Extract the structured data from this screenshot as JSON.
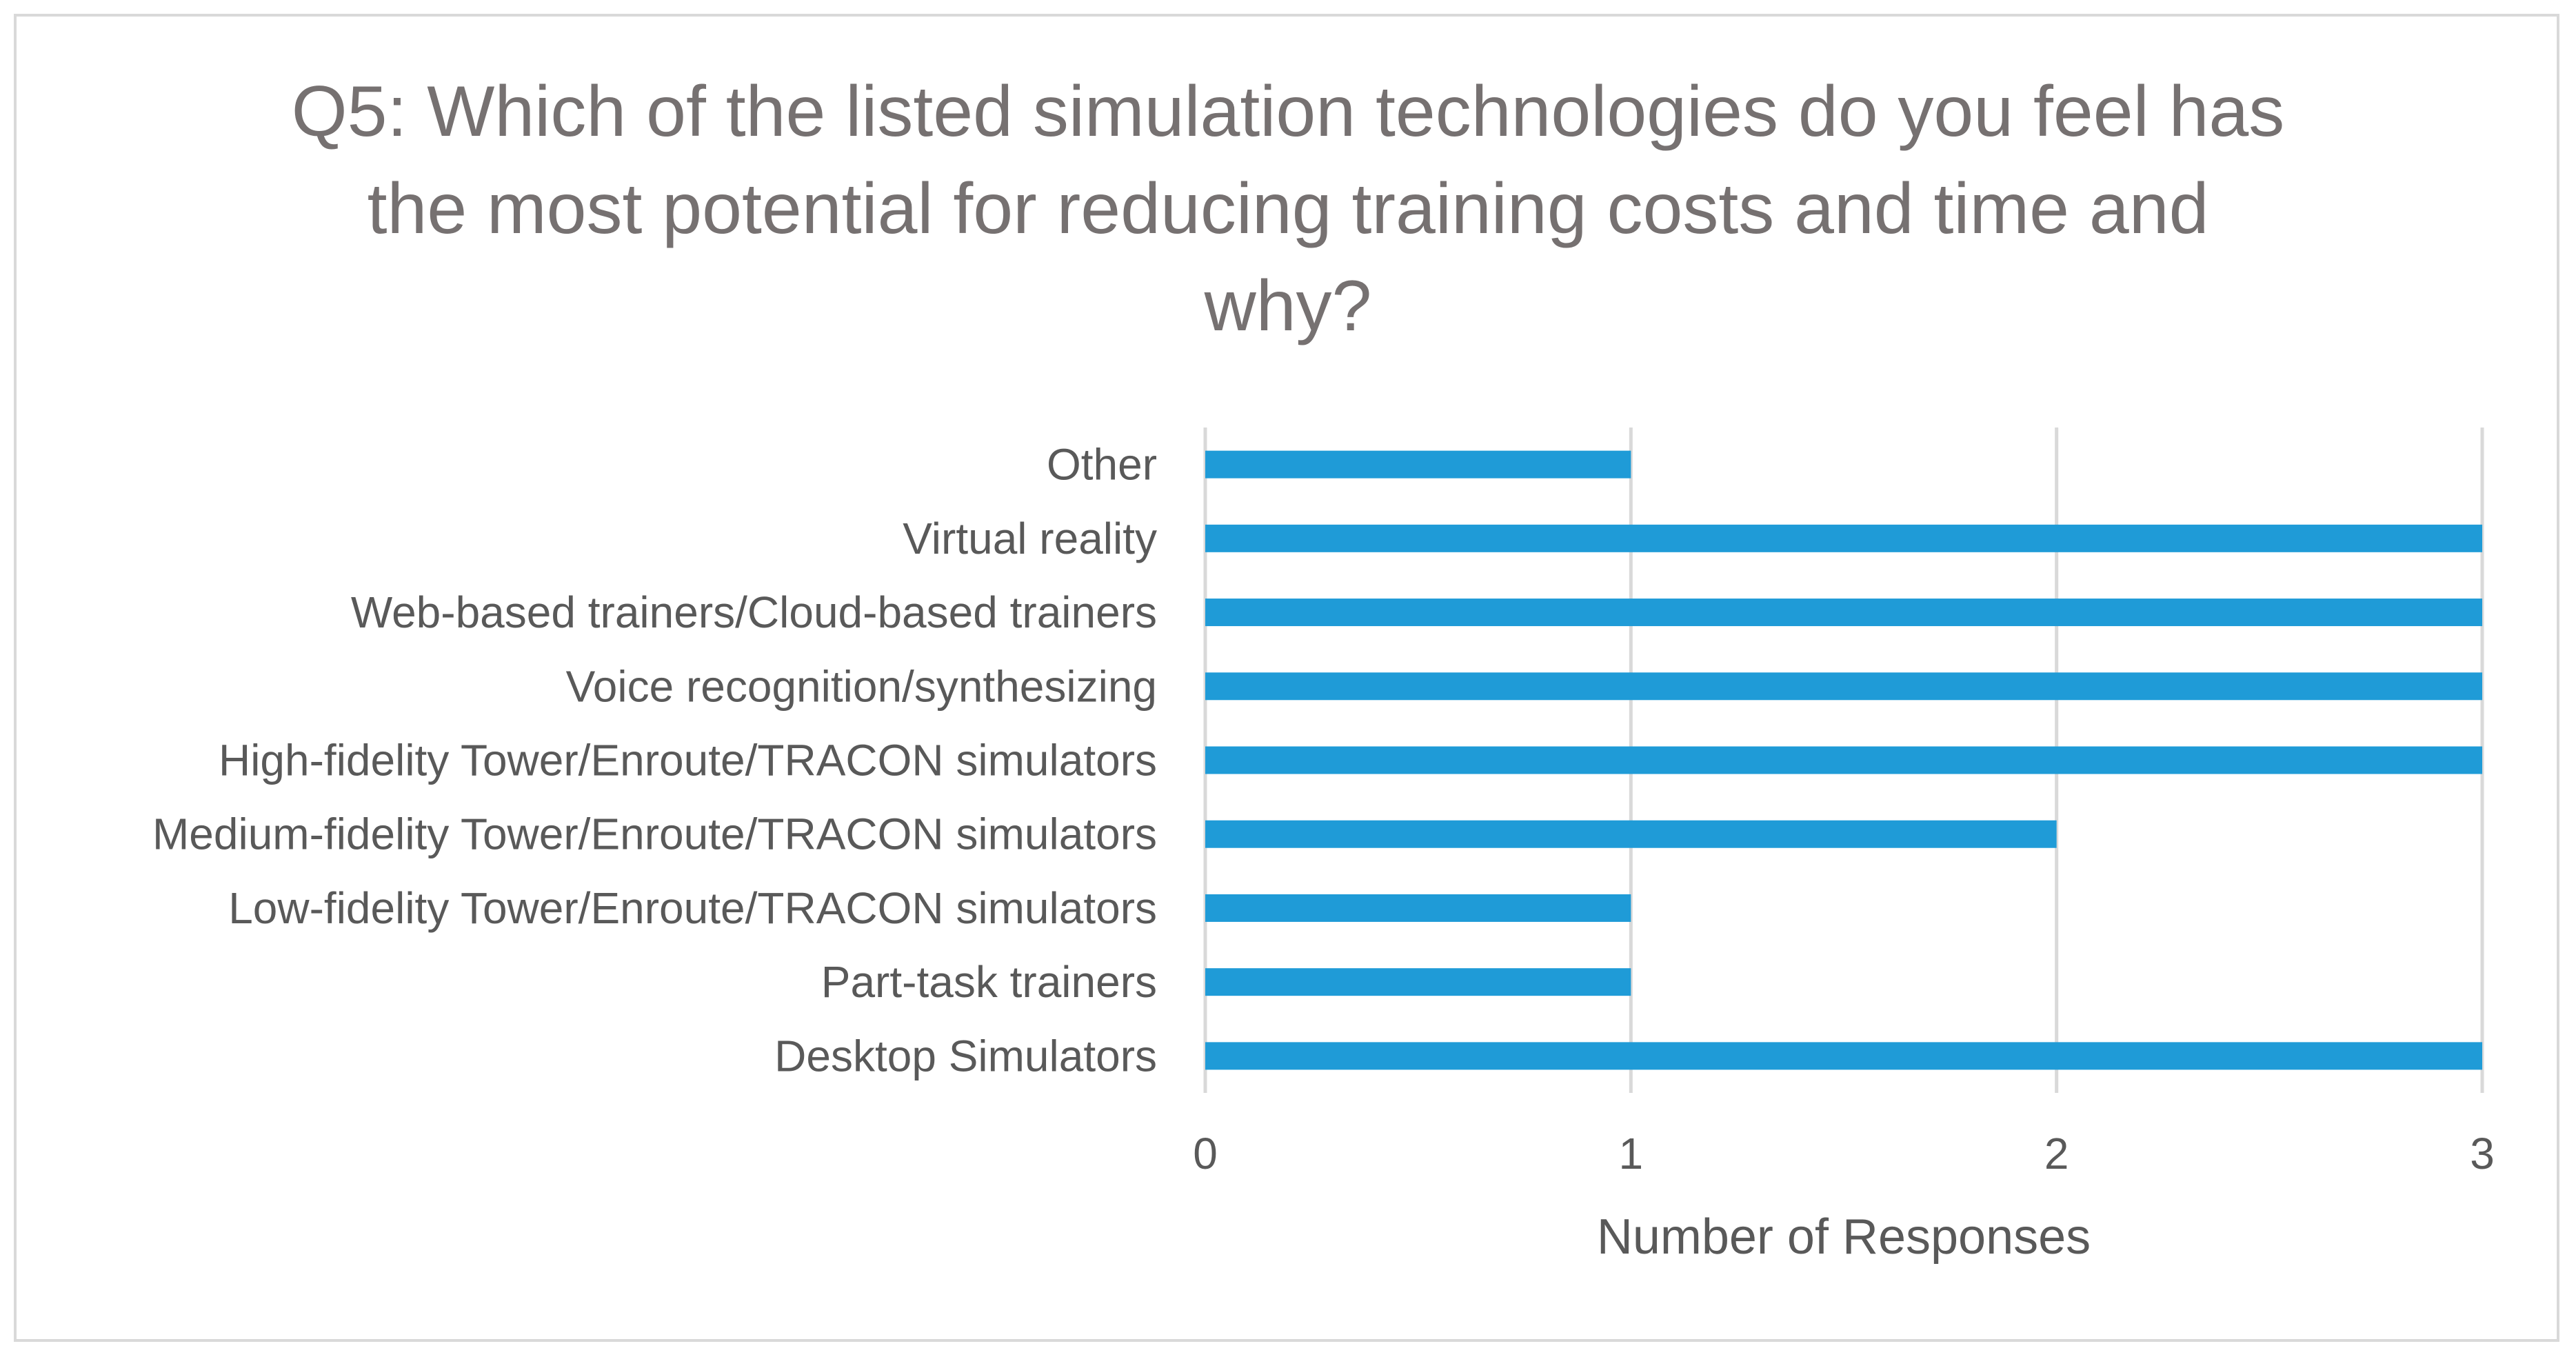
{
  "chart_data": {
    "type": "bar",
    "orientation": "horizontal",
    "title": "Q5: Which of the listed simulation technologies do you feel has the most potential for reducing training costs and time and why?",
    "categories": [
      "Desktop Simulators",
      "Part-task trainers",
      "Low-fidelity Tower/Enroute/TRACON simulators",
      "Medium-fidelity Tower/Enroute/TRACON simulators",
      "High-fidelity Tower/Enroute/TRACON simulators",
      "Voice recognition/synthesizing",
      "Web-based trainers/Cloud-based trainers",
      "Virtual reality",
      "Other"
    ],
    "values": [
      3,
      1,
      1,
      2,
      3,
      3,
      3,
      3,
      1
    ],
    "xlabel": "Number of Responses",
    "ylabel": "",
    "xlim": [
      0,
      3
    ],
    "xticks": [
      0,
      1,
      2,
      3
    ],
    "grid": true,
    "legend": "none",
    "bar_color": "#1f9bd7"
  }
}
